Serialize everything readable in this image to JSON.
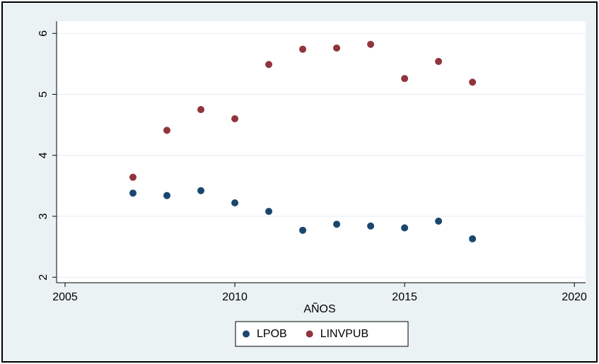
{
  "chart_data": {
    "type": "scatter",
    "xlabel": "AÑOS",
    "x": [
      2007,
      2008,
      2009,
      2010,
      2011,
      2012,
      2013,
      2014,
      2015,
      2016,
      2017
    ],
    "series": [
      {
        "name": "LPOB",
        "color": "#1a476f",
        "values": [
          3.38,
          3.34,
          3.42,
          3.22,
          3.08,
          2.77,
          2.87,
          2.84,
          2.81,
          2.92,
          2.63
        ]
      },
      {
        "name": "LINVPUB",
        "color": "#90353b",
        "values": [
          3.64,
          4.41,
          4.75,
          4.6,
          5.49,
          5.74,
          5.76,
          5.82,
          5.26,
          5.54,
          5.2
        ]
      }
    ],
    "xlim": [
      2004.75,
      2020.33
    ],
    "xticks": [
      2005,
      2010,
      2015,
      2020
    ],
    "ylim": [
      1.91,
      6.2
    ],
    "yticks": [
      2,
      3,
      4,
      5,
      6
    ],
    "grid": true,
    "legend": "bottom"
  }
}
